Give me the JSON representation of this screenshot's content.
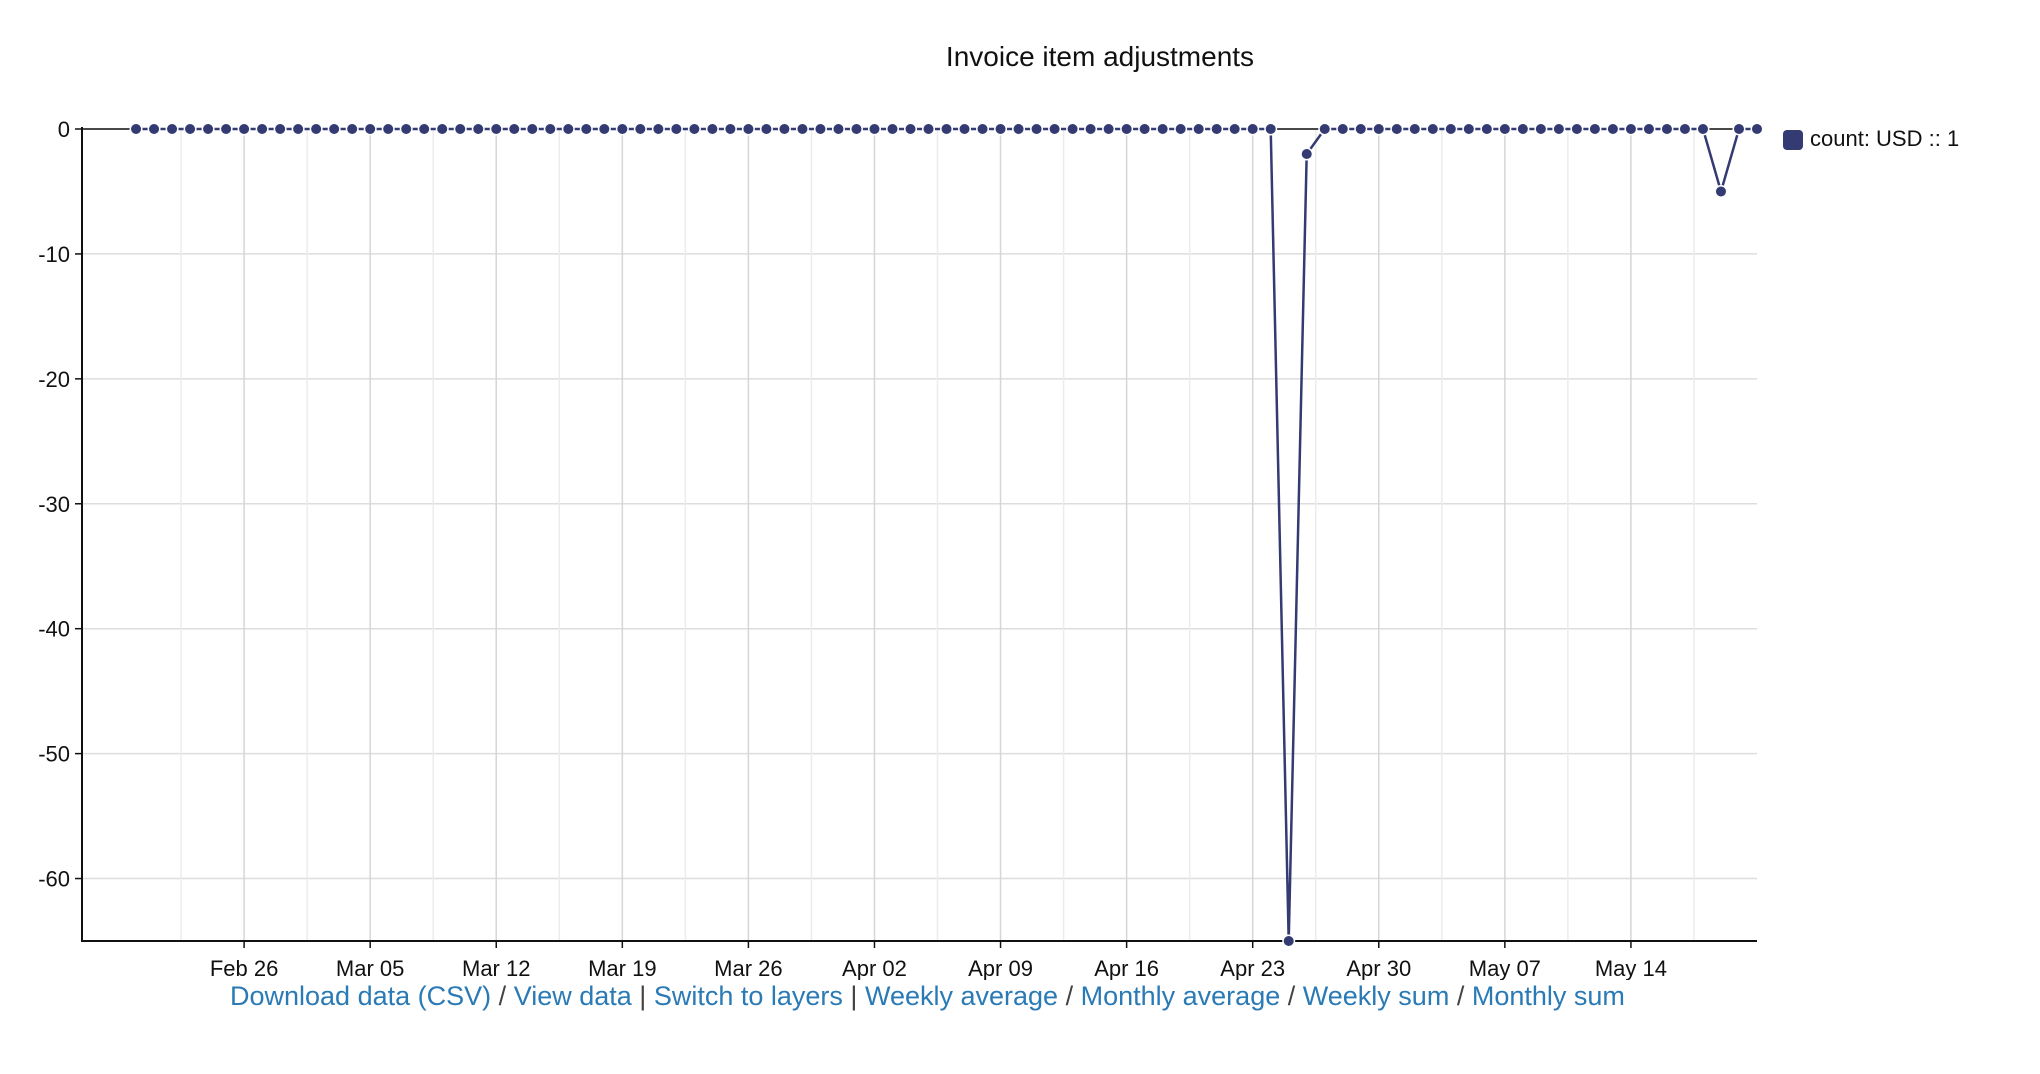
{
  "chart_data": {
    "type": "line",
    "title": "Invoice item adjustments",
    "xlabel": "",
    "ylabel": "",
    "x_start": "2018-02-20",
    "x_end": "2018-05-21",
    "xlim": [
      "2018-02-17",
      "2018-05-21"
    ],
    "ylim": [
      -65,
      0
    ],
    "yticks": [
      0,
      -10,
      -20,
      -30,
      -40,
      -50,
      -60
    ],
    "xticks": [
      {
        "date": "2018-02-26",
        "label": "Feb 26"
      },
      {
        "date": "2018-03-05",
        "label": "Mar 05"
      },
      {
        "date": "2018-03-12",
        "label": "Mar 12"
      },
      {
        "date": "2018-03-19",
        "label": "Mar 19"
      },
      {
        "date": "2018-03-26",
        "label": "Mar 26"
      },
      {
        "date": "2018-04-02",
        "label": "Apr 02"
      },
      {
        "date": "2018-04-09",
        "label": "Apr 09"
      },
      {
        "date": "2018-04-16",
        "label": "Apr 16"
      },
      {
        "date": "2018-04-23",
        "label": "Apr 23"
      },
      {
        "date": "2018-04-30",
        "label": "Apr 30"
      },
      {
        "date": "2018-05-07",
        "label": "May 07"
      },
      {
        "date": "2018-05-14",
        "label": "May 14"
      }
    ],
    "grid": true,
    "legend_position": "right",
    "series": [
      {
        "name": "count: USD :: 1",
        "color": "#343a72",
        "points": [
          {
            "x": "2018-04-25",
            "y": -65
          },
          {
            "x": "2018-04-26",
            "y": -2
          },
          {
            "x": "2018-05-19",
            "y": -5
          }
        ],
        "default_y": 0
      }
    ]
  },
  "links": {
    "download_csv": "Download data (CSV)",
    "view_data": "View data",
    "switch_layers": "Switch to layers",
    "weekly_average": "Weekly average",
    "monthly_average": "Monthly average",
    "weekly_sum": "Weekly sum",
    "monthly_sum": "Monthly sum",
    "slash": "/",
    "pipe": "|"
  }
}
